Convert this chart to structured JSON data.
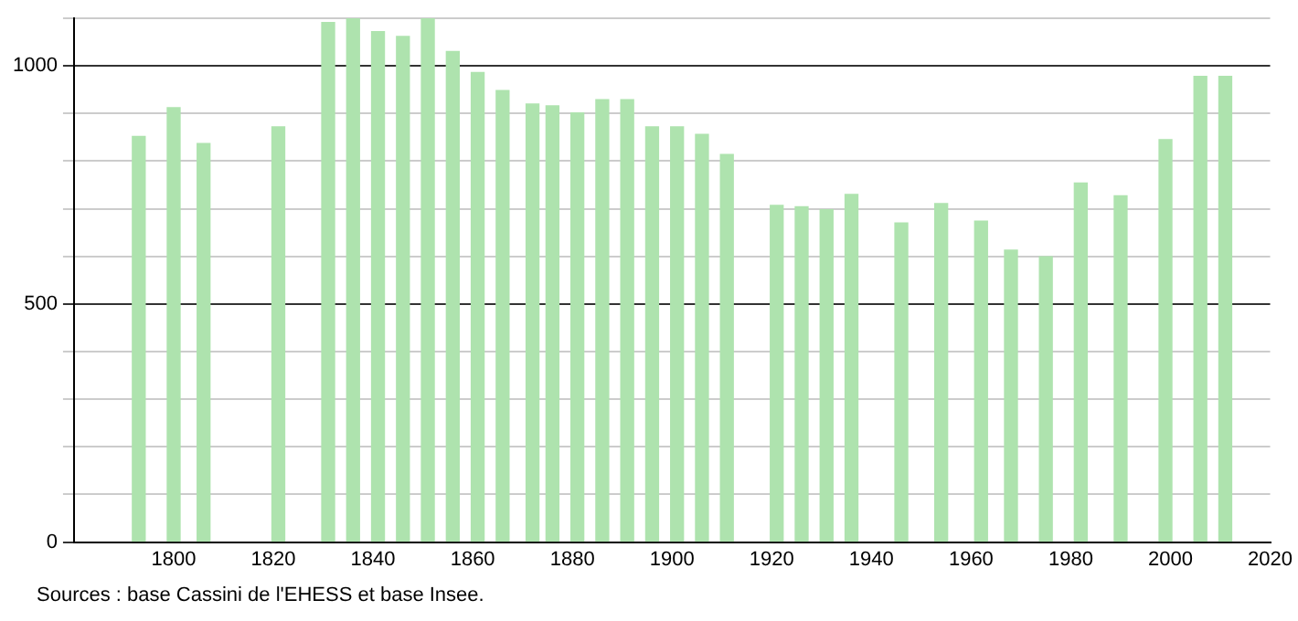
{
  "chart_data": {
    "type": "bar",
    "x": [
      1793,
      1800,
      1806,
      1821,
      1831,
      1836,
      1841,
      1846,
      1851,
      1856,
      1861,
      1866,
      1872,
      1876,
      1881,
      1886,
      1891,
      1896,
      1901,
      1906,
      1911,
      1921,
      1926,
      1931,
      1936,
      1946,
      1954,
      1962,
      1968,
      1975,
      1982,
      1990,
      1999,
      2006,
      2011
    ],
    "values": [
      852,
      912,
      837,
      872,
      1091,
      1100,
      1072,
      1062,
      1100,
      1030,
      986,
      948,
      920,
      916,
      901,
      929,
      929,
      872,
      872,
      856,
      814,
      707,
      704,
      698,
      730,
      670,
      711,
      674,
      613,
      599,
      754,
      727,
      845,
      978,
      978
    ],
    "color": "#aee3ae",
    "xlim": [
      1780,
      2020
    ],
    "xticks": [
      1800,
      1820,
      1840,
      1860,
      1880,
      1900,
      1920,
      1940,
      1960,
      1980,
      2000,
      2020
    ],
    "ylim": [
      0,
      1100
    ],
    "yticks": [
      0,
      {
        "value": 100,
        "label": null
      },
      {
        "value": 200,
        "label": null
      },
      {
        "value": 300,
        "label": null
      },
      {
        "value": 400,
        "label": null
      },
      500,
      {
        "value": 600,
        "label": null
      },
      {
        "value": 700,
        "label": null
      },
      {
        "value": 800,
        "label": null
      },
      {
        "value": 900,
        "label": null
      },
      1000,
      {
        "value": 1100,
        "label": null
      }
    ],
    "grid": "y",
    "annotations": [
      "Sources : base Cassini de l'EHESS et base Insee."
    ]
  }
}
